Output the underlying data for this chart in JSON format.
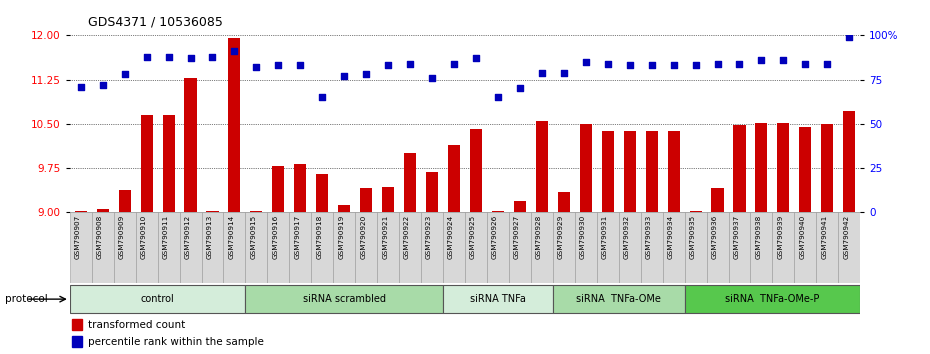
{
  "title": "GDS4371 / 10536085",
  "samples": [
    "GSM790907",
    "GSM790908",
    "GSM790909",
    "GSM790910",
    "GSM790911",
    "GSM790912",
    "GSM790913",
    "GSM790914",
    "GSM790915",
    "GSM790916",
    "GSM790917",
    "GSM790918",
    "GSM790919",
    "GSM790920",
    "GSM790921",
    "GSM790922",
    "GSM790923",
    "GSM790924",
    "GSM790925",
    "GSM790926",
    "GSM790927",
    "GSM790928",
    "GSM790929",
    "GSM790930",
    "GSM790931",
    "GSM790932",
    "GSM790933",
    "GSM790934",
    "GSM790935",
    "GSM790936",
    "GSM790937",
    "GSM790938",
    "GSM790939",
    "GSM790940",
    "GSM790941",
    "GSM790942"
  ],
  "bar_values": [
    9.02,
    9.05,
    9.38,
    10.65,
    10.65,
    11.27,
    9.02,
    11.95,
    9.02,
    9.78,
    9.82,
    9.65,
    9.12,
    9.42,
    9.43,
    10.0,
    9.68,
    10.15,
    10.42,
    9.03,
    9.2,
    10.55,
    9.35,
    10.5,
    10.38,
    10.38,
    10.38,
    10.38,
    9.03,
    9.42,
    10.48,
    10.52,
    10.52,
    10.44,
    10.5,
    10.72
  ],
  "percentile_values": [
    71,
    72,
    78,
    88,
    88,
    87,
    88,
    91,
    82,
    83,
    83,
    65,
    77,
    78,
    83,
    84,
    76,
    84,
    87,
    65,
    70,
    79,
    79,
    85,
    84,
    83,
    83,
    83,
    83,
    84,
    84,
    86,
    86,
    84,
    84,
    99
  ],
  "groups": [
    {
      "label": "control",
      "start": 0,
      "end": 8,
      "color": "#d4edda"
    },
    {
      "label": "siRNA scrambled",
      "start": 8,
      "end": 17,
      "color": "#a8dba8"
    },
    {
      "label": "siRNA TNFa",
      "start": 17,
      "end": 22,
      "color": "#d4edda"
    },
    {
      "label": "siRNA  TNFa-OMe",
      "start": 22,
      "end": 28,
      "color": "#a8dba8"
    },
    {
      "label": "siRNA  TNFa-OMe-P",
      "start": 28,
      "end": 36,
      "color": "#57c84d"
    }
  ],
  "ylim_left": [
    9.0,
    12.0
  ],
  "ylim_right": [
    0,
    100
  ],
  "yticks_left": [
    9.0,
    9.75,
    10.5,
    11.25,
    12.0
  ],
  "yticks_right": [
    0,
    25,
    50,
    75,
    100
  ],
  "bar_color": "#cc0000",
  "dot_color": "#0000bb",
  "background_color": "#ffffff"
}
